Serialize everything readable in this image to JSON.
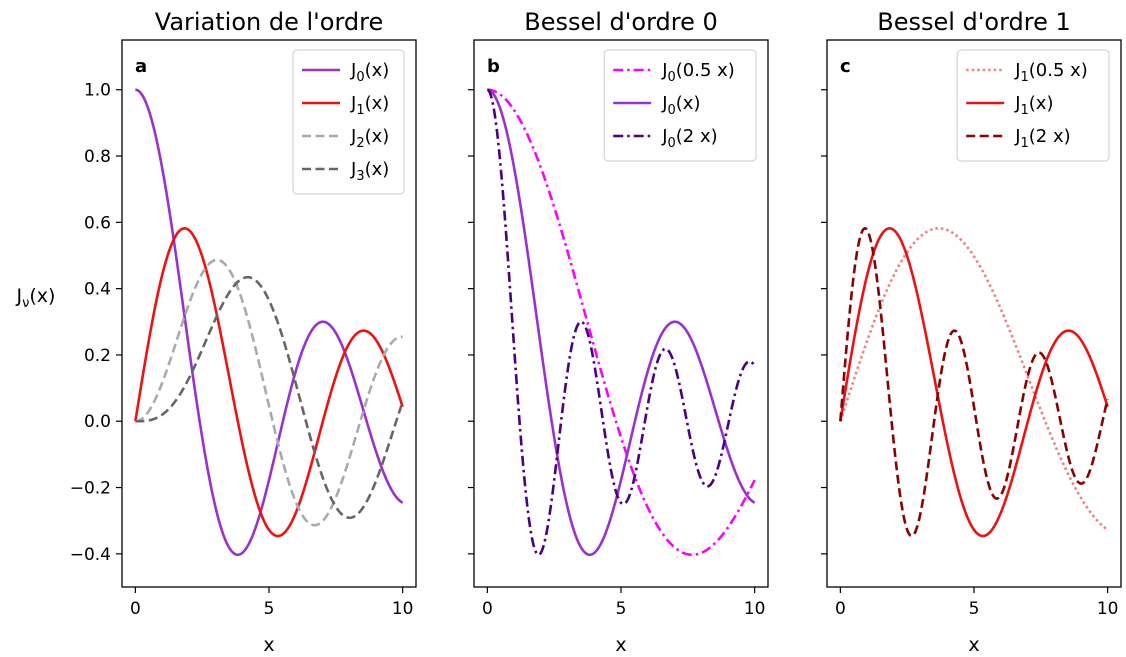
{
  "figure": {
    "ylabel": "Jν(x)",
    "ylabel_main": "J",
    "ylabel_sub": "ν",
    "ylabel_tail": "(x)"
  },
  "chart_data": [
    {
      "type": "line",
      "panel_letter": "a",
      "title": "Variation de l'ordre",
      "xlabel": "x",
      "ylabel": "Jν(x)",
      "xlim": [
        -0.5,
        10.5
      ],
      "ylim": [
        -0.5,
        1.15
      ],
      "xticks": [
        0,
        5,
        10
      ],
      "yticks": [
        -0.4,
        -0.2,
        0.0,
        0.2,
        0.4,
        0.6,
        0.8,
        1.0
      ],
      "ytick_labels": [
        "−0.4",
        "−0.2",
        "0.0",
        "0.2",
        "0.4",
        "0.6",
        "0.8",
        "1.0"
      ],
      "show_ytick_labels": true,
      "legend_position": "top-right",
      "series": [
        {
          "name": "J₀(x)",
          "label_main": "J",
          "label_sub": "0",
          "label_tail": "(x)",
          "order": 0,
          "scale": 1,
          "color": "#9932cc",
          "dash": "solid"
        },
        {
          "name": "J₁(x)",
          "label_main": "J",
          "label_sub": "1",
          "label_tail": "(x)",
          "order": 1,
          "scale": 1,
          "color": "#ee1111",
          "dash": "solid"
        },
        {
          "name": "J₂(x)",
          "label_main": "J",
          "label_sub": "2",
          "label_tail": "(x)",
          "order": 2,
          "scale": 1,
          "color": "#aaaaaa",
          "dash": "dashed"
        },
        {
          "name": "J₃(x)",
          "label_main": "J",
          "label_sub": "3",
          "label_tail": "(x)",
          "order": 3,
          "scale": 1,
          "color": "#666666",
          "dash": "dashed"
        }
      ]
    },
    {
      "type": "line",
      "panel_letter": "b",
      "title": "Bessel d'ordre 0",
      "xlabel": "x",
      "xlim": [
        -0.5,
        10.5
      ],
      "ylim": [
        -0.5,
        1.15
      ],
      "xticks": [
        0,
        5,
        10
      ],
      "yticks": [
        -0.4,
        -0.2,
        0.0,
        0.2,
        0.4,
        0.6,
        0.8,
        1.0
      ],
      "show_ytick_labels": false,
      "legend_position": "top-right",
      "series": [
        {
          "name": "J₀(0.5 x)",
          "label_main": "J",
          "label_sub": "0",
          "label_tail": "(0.5 x)",
          "order": 0,
          "scale": 0.5,
          "color": "#ff00ff",
          "dash": "dashdot"
        },
        {
          "name": "J₀(x)",
          "label_main": "J",
          "label_sub": "0",
          "label_tail": "(x)",
          "order": 0,
          "scale": 1,
          "color": "#9932cc",
          "dash": "solid"
        },
        {
          "name": "J₀(2 x)",
          "label_main": "J",
          "label_sub": "0",
          "label_tail": "(2 x)",
          "order": 0,
          "scale": 2,
          "color": "#4b0082",
          "dash": "dashdot"
        }
      ]
    },
    {
      "type": "line",
      "panel_letter": "c",
      "title": "Bessel d'ordre 1",
      "xlabel": "x",
      "xlim": [
        -0.5,
        10.5
      ],
      "ylim": [
        -0.5,
        1.15
      ],
      "xticks": [
        0,
        5,
        10
      ],
      "yticks": [
        -0.4,
        -0.2,
        0.0,
        0.2,
        0.4,
        0.6,
        0.8,
        1.0
      ],
      "show_ytick_labels": false,
      "legend_position": "top-right",
      "series": [
        {
          "name": "J₁(0.5 x)",
          "label_main": "J",
          "label_sub": "1",
          "label_tail": "(0.5 x)",
          "order": 1,
          "scale": 0.5,
          "color": "#f08080",
          "dash": "dotted"
        },
        {
          "name": "J₁(x)",
          "label_main": "J",
          "label_sub": "1",
          "label_tail": "(x)",
          "order": 1,
          "scale": 1,
          "color": "#ee1111",
          "dash": "solid"
        },
        {
          "name": "J₁(2 x)",
          "label_main": "J",
          "label_sub": "1",
          "label_tail": "(2 x)",
          "order": 1,
          "scale": 2,
          "color": "#8b0000",
          "dash": "dashed"
        }
      ]
    }
  ]
}
